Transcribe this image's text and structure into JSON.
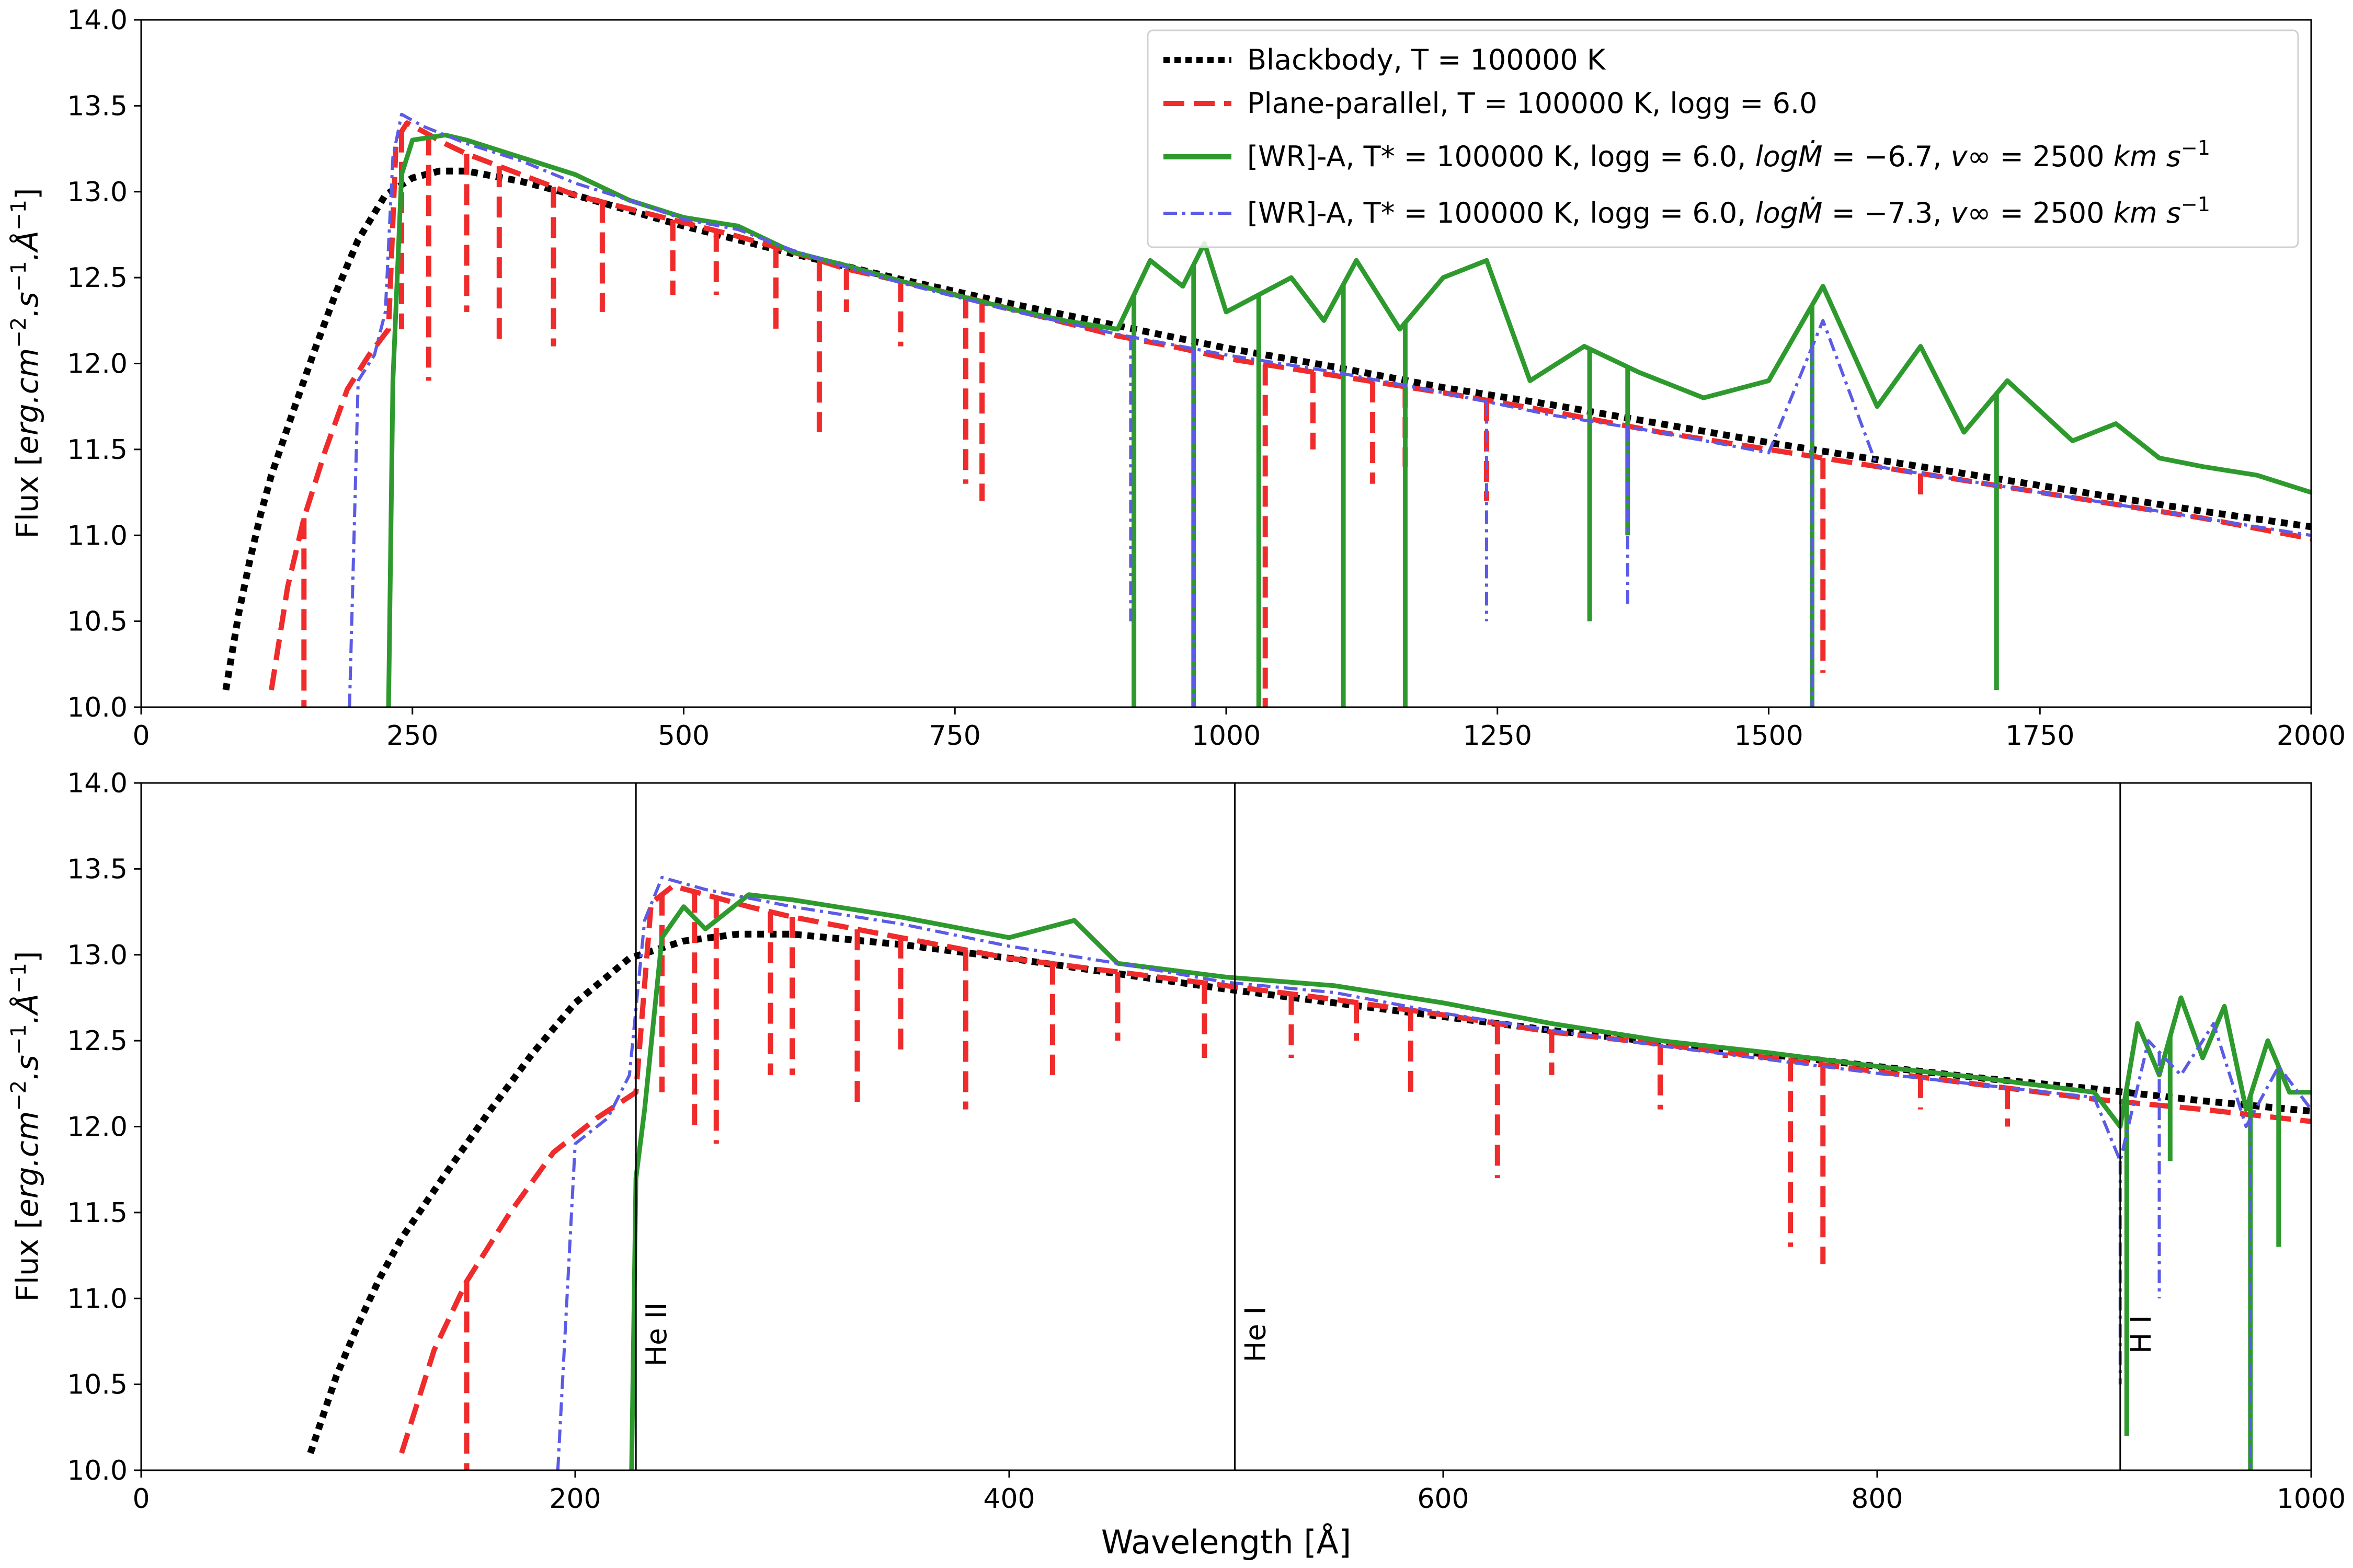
{
  "chart_data": [
    {
      "type": "line",
      "panel": "top",
      "xlabel": "",
      "ylabel": "Flux [erg.cm^-2.s^-1.Å^-1]",
      "xlim": [
        0,
        2000
      ],
      "ylim": [
        10.0,
        14.0
      ],
      "xticks": [
        0,
        250,
        500,
        750,
        1000,
        1250,
        1500,
        1750,
        2000
      ],
      "xtick_labels": [
        "0",
        "250",
        "500",
        "750",
        "1000",
        "1250",
        "1500",
        "1750",
        "2000"
      ],
      "yticks": [
        10.0,
        10.5,
        11.0,
        11.5,
        12.0,
        12.5,
        13.0,
        13.5,
        14.0
      ],
      "ytick_labels": [
        "10.0",
        "10.5",
        "11.0",
        "11.5",
        "12.0",
        "12.5",
        "13.0",
        "13.5",
        "14.0"
      ],
      "legend": {
        "placement": "top-right",
        "entries": [
          {
            "series": "bb",
            "label": "Blackbody, T = 100000 K"
          },
          {
            "series": "pp",
            "label": "Plane-parallel, T = 100000 K, logg = 6.0"
          },
          {
            "series": "wr67",
            "label": "[WR]-A, T* = 100000 K, logg = 6.0, logṀ = −6.7, v∞ = 2500 km s⁻¹"
          },
          {
            "series": "wr73",
            "label": "[WR]-A, T* = 100000 K, logg = 6.0, logṀ = −7.3, v∞ = 2500 km s⁻¹"
          }
        ]
      },
      "series": [
        {
          "key": "bb",
          "name": "Blackbody, T = 100000 K",
          "color": "#000000",
          "style": "dotted",
          "x": [
            78,
            90,
            100,
            110,
            120,
            140,
            160,
            180,
            200,
            225,
            250,
            275,
            300,
            350,
            400,
            450,
            500,
            550,
            600,
            700,
            800,
            900,
            1000,
            1100,
            1200,
            1300,
            1400,
            1500,
            1600,
            1700,
            1800,
            1900,
            2000
          ],
          "y": [
            10.1,
            10.55,
            10.85,
            11.12,
            11.35,
            11.72,
            12.08,
            12.42,
            12.72,
            12.98,
            13.08,
            13.12,
            13.12,
            13.06,
            12.98,
            12.89,
            12.8,
            12.72,
            12.64,
            12.49,
            12.35,
            12.22,
            12.09,
            11.98,
            11.86,
            11.76,
            11.65,
            11.54,
            11.44,
            11.34,
            11.24,
            11.14,
            11.05
          ]
        },
        {
          "key": "pp",
          "name": "Plane-parallel, T = 100000 K, logg = 6.0",
          "color": "#ef2b2b",
          "style": "dashed",
          "x": [
            120,
            135,
            150,
            170,
            190,
            210,
            228,
            235,
            245,
            260,
            280,
            300,
            350,
            400,
            450,
            500,
            550,
            600,
            650,
            700,
            750,
            800,
            850,
            900,
            950,
            1000,
            1050,
            1100,
            1200,
            1300,
            1400,
            1500,
            1600,
            1700,
            1800,
            1900,
            2000
          ],
          "y": [
            10.1,
            10.7,
            11.1,
            11.5,
            11.85,
            12.05,
            12.2,
            13.3,
            13.4,
            13.35,
            13.28,
            13.22,
            13.1,
            12.98,
            12.9,
            12.82,
            12.74,
            12.65,
            12.55,
            12.48,
            12.4,
            12.32,
            12.24,
            12.16,
            12.1,
            12.03,
            11.98,
            11.93,
            11.83,
            11.72,
            11.6,
            11.5,
            11.4,
            11.3,
            11.2,
            11.1,
            10.98
          ],
          "absorption_lines": [
            [
              150,
              10.0
            ],
            [
              240,
              12.2
            ],
            [
              265,
              11.9
            ],
            [
              300,
              12.3
            ],
            [
              330,
              12.1
            ],
            [
              380,
              12.1
            ],
            [
              425,
              12.3
            ],
            [
              490,
              12.4
            ],
            [
              530,
              12.4
            ],
            [
              585,
              12.2
            ],
            [
              625,
              11.6
            ],
            [
              650,
              12.3
            ],
            [
              700,
              12.1
            ],
            [
              760,
              11.3
            ],
            [
              775,
              11.2
            ],
            [
              1036,
              10.0
            ],
            [
              1080,
              11.5
            ],
            [
              1135,
              11.3
            ],
            [
              1165,
              11.4
            ],
            [
              1240,
              11.2
            ],
            [
              1550,
              10.2
            ],
            [
              1640,
              11.2
            ]
          ]
        },
        {
          "key": "wr67",
          "name": "[WR]-A, T* = 100000 K, logg = 6.0, logṀ = −6.7, v∞ = 2500 km s⁻¹",
          "color": "#2e9a2e",
          "style": "solid",
          "x": [
            228,
            232,
            240,
            250,
            280,
            300,
            350,
            400,
            450,
            500,
            550,
            600,
            650,
            700,
            750,
            800,
            850,
            900,
            930,
            960,
            980,
            1000,
            1030,
            1060,
            1090,
            1120,
            1160,
            1200,
            1240,
            1280,
            1330,
            1380,
            1440,
            1500,
            1550,
            1600,
            1640,
            1680,
            1720,
            1780,
            1820,
            1860,
            1900,
            1950,
            2000
          ],
          "y": [
            10.0,
            11.9,
            13.1,
            13.3,
            13.33,
            13.3,
            13.2,
            13.1,
            12.95,
            12.85,
            12.8,
            12.65,
            12.57,
            12.48,
            12.4,
            12.32,
            12.25,
            12.2,
            12.6,
            12.45,
            12.7,
            12.3,
            12.4,
            12.5,
            12.25,
            12.6,
            12.2,
            12.5,
            12.6,
            11.9,
            12.1,
            11.95,
            11.8,
            11.9,
            12.45,
            11.75,
            12.1,
            11.6,
            11.9,
            11.55,
            11.65,
            11.45,
            11.4,
            11.35,
            11.25
          ],
          "absorption_lines": [
            [
              915,
              10.0
            ],
            [
              970,
              10.0
            ],
            [
              1030,
              10.0
            ],
            [
              1108,
              10.0
            ],
            [
              1165,
              10.0
            ],
            [
              1335,
              10.5
            ],
            [
              1370,
              11.0
            ],
            [
              1540,
              10.0
            ],
            [
              1710,
              10.1
            ]
          ]
        },
        {
          "key": "wr73",
          "name": "[WR]-A, T* = 100000 K, logg = 6.0, logṀ = −7.3, v∞ = 2500 km s⁻¹",
          "color": "#5b5be6",
          "style": "dashdot",
          "x": [
            192,
            200,
            215,
            225,
            232,
            240,
            260,
            300,
            350,
            400,
            450,
            500,
            550,
            600,
            650,
            700,
            750,
            800,
            850,
            900,
            1000,
            1100,
            1200,
            1300,
            1400,
            1500,
            1550,
            1600,
            1700,
            1800,
            1900,
            2000
          ],
          "y": [
            10.0,
            11.9,
            12.05,
            12.3,
            13.2,
            13.45,
            13.38,
            13.28,
            13.18,
            13.05,
            12.95,
            12.84,
            12.78,
            12.66,
            12.56,
            12.47,
            12.39,
            12.31,
            12.24,
            12.17,
            12.05,
            11.95,
            11.83,
            11.7,
            11.6,
            11.48,
            12.25,
            11.4,
            11.3,
            11.2,
            11.1,
            11.0
          ],
          "absorption_lines": [
            [
              912,
              10.5
            ],
            [
              970,
              10.0
            ],
            [
              1240,
              10.5
            ],
            [
              1370,
              10.6
            ],
            [
              1540,
              10.0
            ]
          ]
        }
      ]
    },
    {
      "type": "line",
      "panel": "bottom",
      "xlabel": "Wavelength [Å]",
      "ylabel": "Flux [erg.cm^-2.s^-1.Å^-1]",
      "xlim": [
        0,
        1000
      ],
      "ylim": [
        10.0,
        14.0
      ],
      "xticks": [
        0,
        200,
        400,
        600,
        800,
        1000
      ],
      "xtick_labels": [
        "0",
        "200",
        "400",
        "600",
        "800",
        "1000"
      ],
      "yticks": [
        10.0,
        10.5,
        11.0,
        11.5,
        12.0,
        12.5,
        13.0,
        13.5,
        14.0
      ],
      "ytick_labels": [
        "10.0",
        "10.5",
        "11.0",
        "11.5",
        "12.0",
        "12.5",
        "13.0",
        "13.5",
        "14.0"
      ],
      "edges": [
        {
          "x": 228,
          "label": "He II"
        },
        {
          "x": 504,
          "label": "He I"
        },
        {
          "x": 912,
          "label": "H I"
        }
      ],
      "series": [
        {
          "key": "bb",
          "name": "Blackbody, T = 100000 K",
          "color": "#000000",
          "style": "dotted",
          "x": [
            78,
            90,
            100,
            110,
            120,
            140,
            160,
            180,
            200,
            225,
            250,
            275,
            300,
            350,
            400,
            450,
            500,
            550,
            600,
            650,
            700,
            750,
            800,
            850,
            900,
            950,
            1000
          ],
          "y": [
            10.1,
            10.55,
            10.85,
            11.12,
            11.35,
            11.72,
            12.08,
            12.42,
            12.72,
            12.98,
            13.08,
            13.12,
            13.12,
            13.06,
            12.98,
            12.89,
            12.8,
            12.72,
            12.64,
            12.56,
            12.49,
            12.42,
            12.35,
            12.28,
            12.22,
            12.15,
            12.09
          ]
        },
        {
          "key": "pp",
          "name": "Plane-parallel, T = 100000 K, logg = 6.0",
          "color": "#ef2b2b",
          "style": "dashed",
          "x": [
            120,
            135,
            150,
            170,
            190,
            210,
            228,
            235,
            245,
            260,
            280,
            300,
            350,
            400,
            450,
            500,
            550,
            600,
            650,
            700,
            750,
            800,
            850,
            900,
            950,
            1000
          ],
          "y": [
            10.1,
            10.7,
            11.1,
            11.5,
            11.85,
            12.05,
            12.2,
            13.3,
            13.4,
            13.35,
            13.28,
            13.22,
            13.1,
            12.98,
            12.9,
            12.82,
            12.74,
            12.65,
            12.55,
            12.48,
            12.4,
            12.32,
            12.24,
            12.16,
            12.1,
            12.03
          ],
          "absorption_lines": [
            [
              150,
              10.0
            ],
            [
              240,
              12.2
            ],
            [
              255,
              12.0
            ],
            [
              265,
              11.9
            ],
            [
              290,
              12.3
            ],
            [
              300,
              12.3
            ],
            [
              330,
              12.1
            ],
            [
              350,
              12.4
            ],
            [
              380,
              12.1
            ],
            [
              420,
              12.3
            ],
            [
              450,
              12.5
            ],
            [
              490,
              12.4
            ],
            [
              530,
              12.4
            ],
            [
              560,
              12.5
            ],
            [
              585,
              12.2
            ],
            [
              625,
              11.7
            ],
            [
              650,
              12.3
            ],
            [
              690,
              12.5
            ],
            [
              700,
              12.1
            ],
            [
              730,
              12.4
            ],
            [
              760,
              11.3
            ],
            [
              775,
              11.2
            ],
            [
              820,
              12.1
            ],
            [
              860,
              12.0
            ]
          ]
        },
        {
          "key": "wr67",
          "name": "[WR]-A, T* = 100000 K, logg = 6.0, logṀ = −6.7, v∞ = 2500 km s⁻¹",
          "color": "#2e9a2e",
          "style": "solid",
          "x": [
            226,
            228,
            232,
            240,
            250,
            260,
            280,
            300,
            350,
            400,
            430,
            450,
            500,
            550,
            600,
            650,
            700,
            750,
            800,
            850,
            900,
            912,
            920,
            930,
            940,
            950,
            960,
            970,
            980,
            990,
            1000
          ],
          "y": [
            10.0,
            11.7,
            12.1,
            13.1,
            13.28,
            13.15,
            13.35,
            13.32,
            13.22,
            13.1,
            13.2,
            12.95,
            12.87,
            12.82,
            12.72,
            12.6,
            12.5,
            12.43,
            12.35,
            12.28,
            12.2,
            12.0,
            12.6,
            12.3,
            12.75,
            12.4,
            12.7,
            12.1,
            12.5,
            12.2,
            12.2
          ],
          "absorption_lines": [
            [
              915,
              10.2
            ],
            [
              935,
              11.8
            ],
            [
              972,
              10.0
            ],
            [
              985,
              11.3
            ]
          ]
        },
        {
          "key": "wr73",
          "name": "[WR]-A, T* = 100000 K, logg = 6.0, logṀ = −7.3, v∞ = 2500 km s⁻¹",
          "color": "#5b5be6",
          "style": "dashdot",
          "x": [
            192,
            200,
            215,
            225,
            232,
            240,
            260,
            300,
            350,
            400,
            450,
            500,
            550,
            600,
            650,
            700,
            750,
            800,
            850,
            900,
            912,
            925,
            940,
            955,
            970,
            985,
            1000
          ],
          "y": [
            10.0,
            11.9,
            12.05,
            12.3,
            13.2,
            13.45,
            13.38,
            13.28,
            13.18,
            13.05,
            12.95,
            12.84,
            12.78,
            12.66,
            12.56,
            12.47,
            12.39,
            12.31,
            12.24,
            12.17,
            11.8,
            12.5,
            12.3,
            12.6,
            12.0,
            12.35,
            12.1
          ],
          "absorption_lines": [
            [
              912,
              10.5
            ],
            [
              930,
              11.0
            ],
            [
              972,
              10.0
            ]
          ]
        }
      ]
    }
  ]
}
